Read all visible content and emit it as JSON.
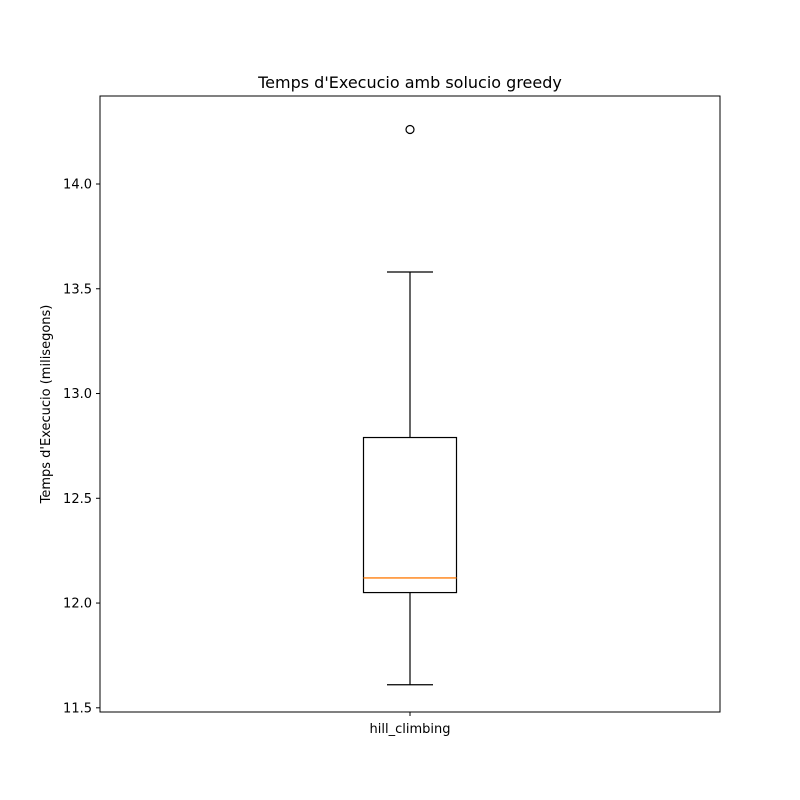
{
  "chart_data": {
    "type": "boxplot",
    "title": "Temps d'Execucio amb solucio greedy",
    "xlabel": "",
    "ylabel": "Temps d'Execucio (milisegons)",
    "categories": [
      "hill_climbing"
    ],
    "ylim": [
      11.48,
      14.42
    ],
    "yticks": [
      11.5,
      12.0,
      12.5,
      13.0,
      13.5,
      14.0
    ],
    "ytick_labels": [
      "11.5",
      "12.0",
      "12.5",
      "13.0",
      "13.5",
      "14.0"
    ],
    "grid": false,
    "boxes": [
      {
        "category": "hill_climbing",
        "whisker_low": 11.61,
        "q1": 12.05,
        "median": 12.12,
        "q3": 12.79,
        "whisker_high": 13.58,
        "outliers": [
          14.26
        ]
      }
    ],
    "colors": {
      "box": "#000000",
      "median": "#ff7f0e",
      "whisker": "#000000",
      "outlier": "#000000"
    }
  }
}
